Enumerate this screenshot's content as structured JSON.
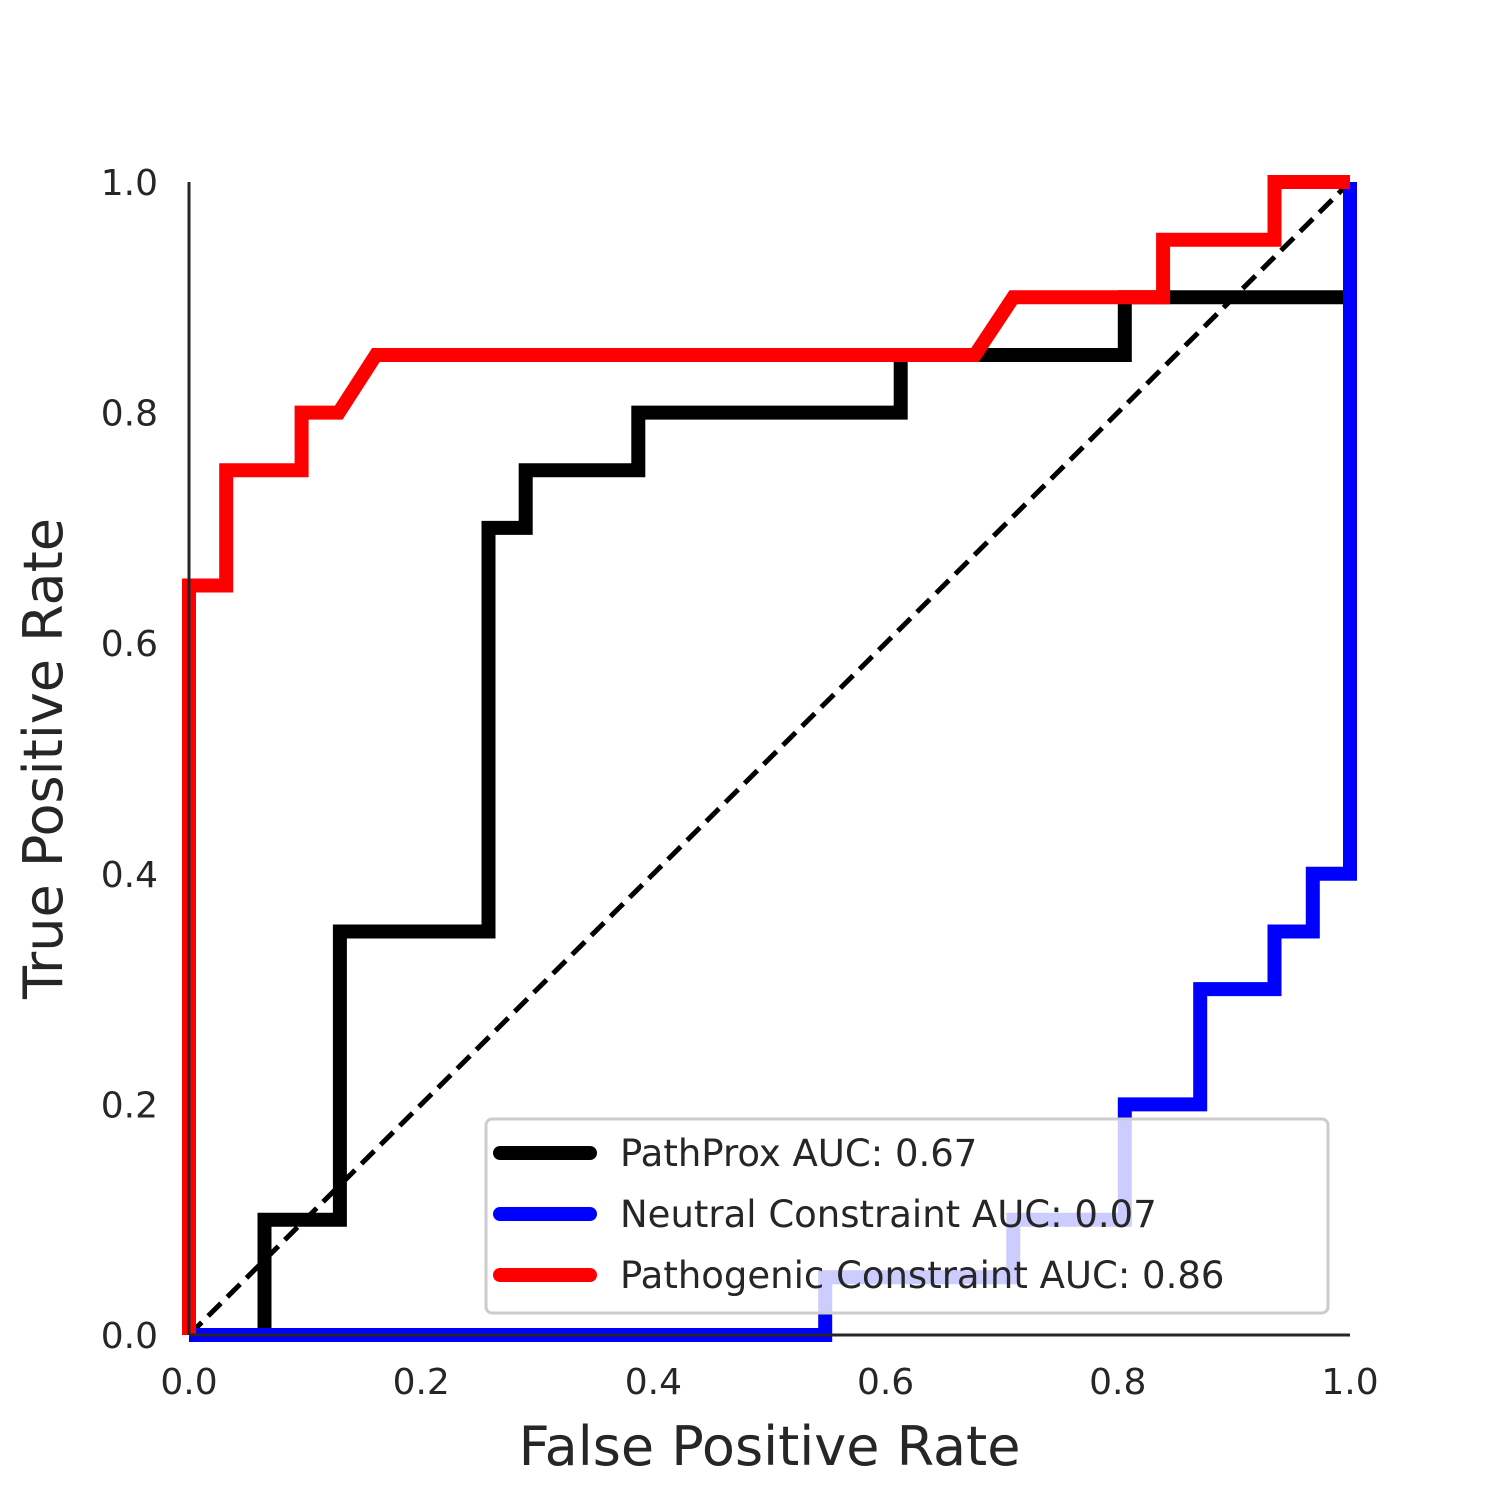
{
  "chart_data": {
    "type": "line",
    "title": "",
    "xlabel": "False Positive Rate",
    "ylabel": "True Positive Rate",
    "xlim": [
      0.0,
      1.0
    ],
    "ylim": [
      0.0,
      1.0
    ],
    "xticks": [
      "0.0",
      "0.2",
      "0.4",
      "0.6",
      "0.8",
      "1.0"
    ],
    "yticks": [
      "0.0",
      "0.2",
      "0.4",
      "0.6",
      "0.8",
      "1.0"
    ],
    "grid": false,
    "legend_position": "lower-right",
    "series": [
      {
        "name": "PathProx AUC:  0.67",
        "color": "#000000",
        "x": [
          0.065,
          0.065,
          0.13,
          0.13,
          0.258,
          0.258,
          0.29,
          0.29,
          0.387,
          0.387,
          0.613,
          0.613,
          0.806,
          0.806,
          1.0
        ],
        "y": [
          0.0,
          0.1,
          0.1,
          0.35,
          0.35,
          0.7,
          0.7,
          0.75,
          0.75,
          0.8,
          0.8,
          0.85,
          0.85,
          0.9,
          0.9
        ]
      },
      {
        "name": "Neutral Constraint AUC:  0.07",
        "color": "#0000ff",
        "x": [
          0.0,
          0.548,
          0.548,
          0.71,
          0.71,
          0.806,
          0.806,
          0.871,
          0.871,
          0.935,
          0.935,
          0.968,
          0.968,
          1.0,
          1.0
        ],
        "y": [
          0.0,
          0.0,
          0.05,
          0.05,
          0.1,
          0.1,
          0.2,
          0.2,
          0.3,
          0.3,
          0.35,
          0.35,
          0.4,
          0.4,
          1.0
        ]
      },
      {
        "name": "Pathogenic Constraint AUC:  0.86",
        "color": "#ff0000",
        "x": [
          0.0,
          0.0,
          0.032,
          0.032,
          0.097,
          0.097,
          0.129,
          0.161,
          0.677,
          0.71,
          0.839,
          0.839,
          0.935,
          0.935,
          1.0
        ],
        "y": [
          0.0,
          0.65,
          0.65,
          0.75,
          0.75,
          0.8,
          0.8,
          0.85,
          0.85,
          0.9,
          0.9,
          0.95,
          0.95,
          1.0,
          1.0
        ]
      }
    ],
    "reference_line": {
      "style": "dashed",
      "color": "#000000",
      "x": [
        0.0,
        1.0
      ],
      "y": [
        0.0,
        1.0
      ]
    }
  }
}
